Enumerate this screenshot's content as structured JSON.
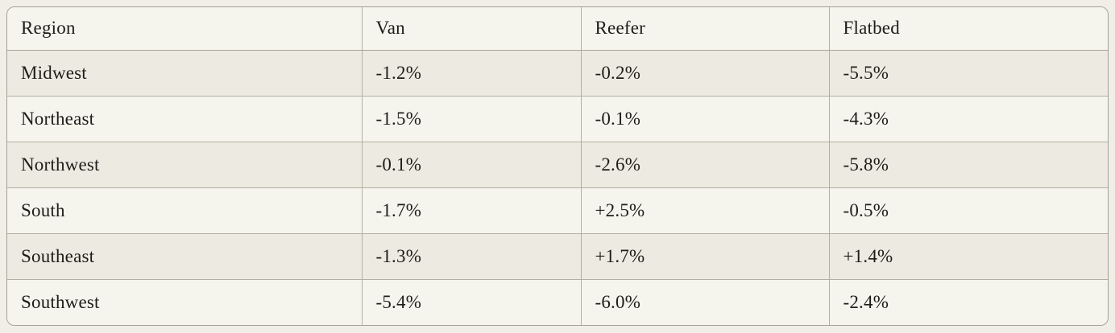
{
  "table": {
    "headers": [
      "Region",
      "Van",
      "Reefer",
      "Flatbed"
    ],
    "rows": [
      {
        "cells": [
          "Midwest",
          "-1.2%",
          "-0.2%",
          "-5.5%"
        ]
      },
      {
        "cells": [
          "Northeast",
          "-1.5%",
          "-0.1%",
          "-4.3%"
        ]
      },
      {
        "cells": [
          "Northwest",
          "-0.1%",
          "-2.6%",
          "-5.8%"
        ]
      },
      {
        "cells": [
          "South",
          "-1.7%",
          "+2.5%",
          "-0.5%"
        ]
      },
      {
        "cells": [
          "Southeast",
          "-1.3%",
          "+1.7%",
          "+1.4%"
        ]
      },
      {
        "cells": [
          "Southwest",
          "-5.4%",
          "-6.0%",
          "-2.4%"
        ]
      }
    ]
  },
  "chart_data": {
    "type": "table",
    "title": "",
    "categories": [
      "Midwest",
      "Northeast",
      "Northwest",
      "South",
      "Southeast",
      "Southwest"
    ],
    "series": [
      {
        "name": "Van",
        "values": [
          -1.2,
          -1.5,
          -0.1,
          -1.7,
          -1.3,
          -5.4
        ]
      },
      {
        "name": "Reefer",
        "values": [
          -0.2,
          -0.1,
          -2.6,
          2.5,
          1.7,
          -6.0
        ]
      },
      {
        "name": "Flatbed",
        "values": [
          -5.5,
          -4.3,
          -5.8,
          -0.5,
          1.4,
          -2.4
        ]
      }
    ],
    "unit": "%",
    "row_label_column": "Region"
  },
  "colors": {
    "page_background": "#f0eee7",
    "row_light": "#f5f4ed",
    "row_dark": "#edeae1",
    "border": "#a8a598",
    "text": "#1e1d19"
  }
}
